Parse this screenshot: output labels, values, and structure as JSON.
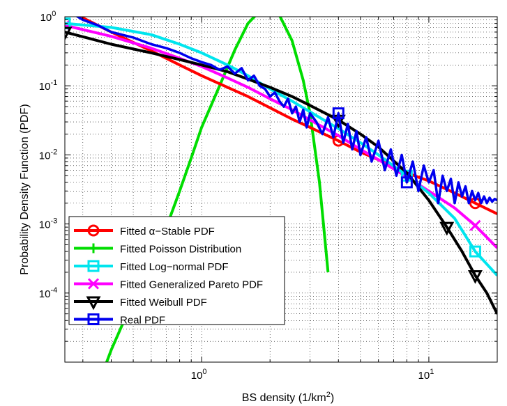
{
  "chart_data": {
    "type": "line",
    "title": "",
    "xlabel": {
      "prefix": "BS density (1/km",
      "sup": "2",
      "suffix": ")"
    },
    "ylabel": "Probability Density Function (PDF)",
    "xscale": "log",
    "yscale": "log",
    "xlim": [
      0.25,
      20
    ],
    "ylim": [
      1e-05,
      1
    ],
    "grid": true,
    "legend_position": "bottom-left",
    "x_ticks": [
      {
        "value": 1,
        "base": "10",
        "exp": "0"
      },
      {
        "value": 10,
        "base": "10",
        "exp": "1"
      }
    ],
    "y_ticks": [
      {
        "value": 1,
        "base": "10",
        "exp": "0"
      },
      {
        "value": 0.1,
        "base": "10",
        "exp": "-1"
      },
      {
        "value": 0.01,
        "base": "10",
        "exp": "-2"
      },
      {
        "value": 0.001,
        "base": "10",
        "exp": "-3"
      },
      {
        "value": 0.0001,
        "base": "10",
        "exp": "-4"
      }
    ],
    "series": [
      {
        "name": "Fitted α−Stable PDF",
        "color": "#ff0000",
        "marker": "circle",
        "x": [
          0.25,
          0.4,
          0.6,
          0.8,
          1.0,
          1.3,
          1.6,
          2.0,
          2.5,
          3.0,
          4.0,
          5.0,
          6.0,
          8.0,
          10.0,
          13.0,
          16.0,
          20.0
        ],
        "y": [
          1.3,
          0.6,
          0.32,
          0.2,
          0.14,
          0.095,
          0.07,
          0.048,
          0.033,
          0.025,
          0.016,
          0.011,
          0.0085,
          0.0055,
          0.0042,
          0.0028,
          0.002,
          0.0014
        ],
        "marker_x": [
          0.25,
          4.0,
          16.0
        ]
      },
      {
        "name": "Fitted Poisson Distribution",
        "color": "#00dd00",
        "marker": "plus",
        "x": [
          0.3,
          0.4,
          0.5,
          0.6,
          0.7,
          0.8,
          0.9,
          1.0,
          1.2,
          1.4,
          1.6,
          1.8,
          2.0,
          2.2,
          2.5,
          2.8,
          3.0,
          3.3,
          3.6
        ],
        "y": [
          1.2e-06,
          1.5e-05,
          8e-05,
          0.0003,
          0.0009,
          0.003,
          0.009,
          0.025,
          0.1,
          0.33,
          0.8,
          1.2,
          1.3,
          1.05,
          0.45,
          0.12,
          0.04,
          0.004,
          0.0002
        ],
        "marker_x": []
      },
      {
        "name": "Fitted Log−normal PDF",
        "color": "#00e5ee",
        "marker": "square",
        "x": [
          0.25,
          0.4,
          0.6,
          0.8,
          1.0,
          1.3,
          1.6,
          2.0,
          2.5,
          3.0,
          4.0,
          5.0,
          6.0,
          8.0,
          10.0,
          13.0,
          16.0,
          20.0
        ],
        "y": [
          0.8,
          0.7,
          0.55,
          0.4,
          0.3,
          0.2,
          0.14,
          0.09,
          0.06,
          0.042,
          0.024,
          0.015,
          0.01,
          0.005,
          0.0028,
          0.0012,
          0.0004,
          0.00018
        ],
        "marker_x": [
          0.25,
          8.0,
          16.0
        ]
      },
      {
        "name": "Fitted Generalized Pareto PDF",
        "color": "#ff00ff",
        "marker": "x",
        "x": [
          0.25,
          0.4,
          0.6,
          0.8,
          1.0,
          1.3,
          1.6,
          2.0,
          2.5,
          3.0,
          4.0,
          5.0,
          6.0,
          8.0,
          10.0,
          13.0,
          16.0,
          20.0
        ],
        "y": [
          0.75,
          0.52,
          0.35,
          0.25,
          0.19,
          0.13,
          0.095,
          0.065,
          0.045,
          0.032,
          0.019,
          0.012,
          0.0085,
          0.0048,
          0.003,
          0.0017,
          0.00095,
          0.00045
        ],
        "marker_x": [
          0.25,
          16.0
        ]
      },
      {
        "name": "Fitted Weibull PDF",
        "color": "#000000",
        "marker": "triangle-down",
        "x": [
          0.25,
          0.4,
          0.6,
          0.8,
          1.0,
          1.3,
          1.6,
          2.0,
          2.5,
          3.0,
          4.0,
          5.0,
          6.0,
          8.0,
          10.0,
          12.0,
          14.0,
          16.0,
          18.0,
          20.0
        ],
        "y": [
          0.6,
          0.4,
          0.3,
          0.24,
          0.2,
          0.16,
          0.125,
          0.095,
          0.07,
          0.052,
          0.032,
          0.02,
          0.013,
          0.0055,
          0.0022,
          0.0009,
          0.0004,
          0.00018,
          0.0001,
          5e-05
        ],
        "marker_x": [
          0.25,
          4.0,
          12.0,
          16.0
        ]
      },
      {
        "name": "Real PDF",
        "color": "#0000ee",
        "marker": "square",
        "x": [
          0.25,
          0.3,
          0.35,
          0.4,
          0.5,
          0.6,
          0.7,
          0.8,
          0.9,
          1.0,
          1.1,
          1.2,
          1.3,
          1.4,
          1.5,
          1.6,
          1.7,
          1.8,
          1.9,
          2.0,
          2.1,
          2.2,
          2.3,
          2.4,
          2.5,
          2.6,
          2.7,
          2.8,
          2.9,
          3.0,
          3.2,
          3.4,
          3.6,
          3.8,
          4.0,
          4.2,
          4.4,
          4.6,
          4.8,
          5.0,
          5.3,
          5.6,
          6.0,
          6.4,
          6.8,
          7.2,
          7.6,
          8.0,
          8.5,
          9.0,
          9.5,
          10.0,
          10.5,
          11.0,
          11.5,
          12.0,
          12.5,
          13.0,
          13.5,
          14.0,
          14.5,
          15.0,
          15.5,
          16.0,
          16.5,
          17.0,
          17.5,
          18.0,
          18.5,
          19.0,
          19.5,
          20.0
        ],
        "y": [
          1.3,
          0.9,
          0.75,
          0.6,
          0.5,
          0.4,
          0.35,
          0.3,
          0.25,
          0.22,
          0.2,
          0.17,
          0.19,
          0.15,
          0.18,
          0.12,
          0.14,
          0.1,
          0.09,
          0.07,
          0.08,
          0.06,
          0.05,
          0.065,
          0.04,
          0.05,
          0.03,
          0.045,
          0.025,
          0.04,
          0.03,
          0.02,
          0.035,
          0.018,
          0.04,
          0.015,
          0.028,
          0.012,
          0.022,
          0.01,
          0.018,
          0.008,
          0.016,
          0.006,
          0.012,
          0.005,
          0.01,
          0.004,
          0.008,
          0.003,
          0.007,
          0.004,
          0.006,
          0.002,
          0.005,
          0.003,
          0.0045,
          0.002,
          0.004,
          0.0025,
          0.0035,
          0.002,
          0.003,
          0.0022,
          0.0028,
          0.002,
          0.0025,
          0.002,
          0.0024,
          0.0021,
          0.0023,
          0.0022
        ],
        "marker_x": [
          4.0,
          8.0
        ]
      }
    ]
  }
}
